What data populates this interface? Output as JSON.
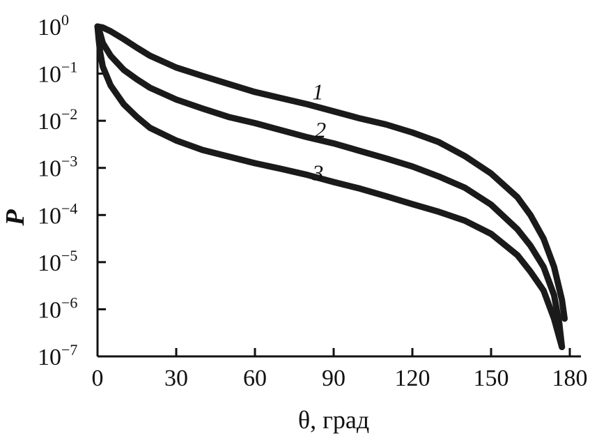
{
  "chart_data": {
    "type": "line",
    "title": "",
    "xlabel": "θ, град",
    "ylabel": "P",
    "xlim": [
      0,
      180
    ],
    "ylim_log10": [
      -7,
      0
    ],
    "y_scale": "log",
    "grid": false,
    "legend": "none",
    "x_ticks": [
      {
        "value": 0,
        "label": "0"
      },
      {
        "value": 30,
        "label": "30"
      },
      {
        "value": 60,
        "label": "60"
      },
      {
        "value": 90,
        "label": "90"
      },
      {
        "value": 120,
        "label": "120"
      },
      {
        "value": 150,
        "label": "150"
      },
      {
        "value": 180,
        "label": "180"
      }
    ],
    "y_ticks": [
      {
        "exp": 0,
        "base": "10",
        "sup": "0"
      },
      {
        "exp": -1,
        "base": "10",
        "sup": "−1"
      },
      {
        "exp": -2,
        "base": "10",
        "sup": "−2"
      },
      {
        "exp": -3,
        "base": "10",
        "sup": "−3"
      },
      {
        "exp": -4,
        "base": "10",
        "sup": "−4"
      },
      {
        "exp": -5,
        "base": "10",
        "sup": "−5"
      },
      {
        "exp": -6,
        "base": "10",
        "sup": "−6"
      },
      {
        "exp": -7,
        "base": "10",
        "sup": "−7"
      }
    ],
    "series": [
      {
        "name": "1",
        "label_at": [
          84,
          -1.55
        ],
        "points": [
          [
            0,
            0
          ],
          [
            2,
            -0.02
          ],
          [
            5,
            -0.1
          ],
          [
            10,
            -0.27
          ],
          [
            15,
            -0.45
          ],
          [
            20,
            -0.62
          ],
          [
            30,
            -0.87
          ],
          [
            40,
            -1.05
          ],
          [
            50,
            -1.22
          ],
          [
            60,
            -1.39
          ],
          [
            70,
            -1.52
          ],
          [
            80,
            -1.65
          ],
          [
            90,
            -1.8
          ],
          [
            100,
            -1.95
          ],
          [
            110,
            -2.08
          ],
          [
            120,
            -2.25
          ],
          [
            130,
            -2.45
          ],
          [
            140,
            -2.75
          ],
          [
            150,
            -3.12
          ],
          [
            160,
            -3.62
          ],
          [
            165,
            -4.0
          ],
          [
            170,
            -4.5
          ],
          [
            174,
            -5.1
          ],
          [
            177,
            -5.8
          ],
          [
            178,
            -6.2
          ]
        ]
      },
      {
        "name": "2",
        "label_at": [
          85,
          -2.35
        ],
        "points": [
          [
            0,
            0
          ],
          [
            1,
            -0.15
          ],
          [
            2,
            -0.35
          ],
          [
            5,
            -0.62
          ],
          [
            10,
            -0.92
          ],
          [
            15,
            -1.12
          ],
          [
            20,
            -1.3
          ],
          [
            30,
            -1.55
          ],
          [
            40,
            -1.74
          ],
          [
            50,
            -1.92
          ],
          [
            60,
            -2.05
          ],
          [
            70,
            -2.2
          ],
          [
            80,
            -2.35
          ],
          [
            90,
            -2.48
          ],
          [
            100,
            -2.64
          ],
          [
            110,
            -2.8
          ],
          [
            120,
            -2.97
          ],
          [
            130,
            -3.18
          ],
          [
            140,
            -3.42
          ],
          [
            150,
            -3.78
          ],
          [
            160,
            -4.3
          ],
          [
            165,
            -4.65
          ],
          [
            170,
            -5.1
          ],
          [
            174,
            -5.7
          ],
          [
            176,
            -6.3
          ],
          [
            177,
            -6.8
          ]
        ]
      },
      {
        "name": "3",
        "label_at": [
          84,
          -3.26
        ],
        "points": [
          [
            0,
            0
          ],
          [
            0.5,
            -0.3
          ],
          [
            1,
            -0.55
          ],
          [
            2,
            -0.85
          ],
          [
            5,
            -1.25
          ],
          [
            10,
            -1.65
          ],
          [
            15,
            -1.92
          ],
          [
            20,
            -2.15
          ],
          [
            30,
            -2.42
          ],
          [
            40,
            -2.62
          ],
          [
            50,
            -2.76
          ],
          [
            60,
            -2.9
          ],
          [
            70,
            -3.02
          ],
          [
            80,
            -3.15
          ],
          [
            90,
            -3.3
          ],
          [
            100,
            -3.44
          ],
          [
            110,
            -3.6
          ],
          [
            120,
            -3.77
          ],
          [
            130,
            -3.93
          ],
          [
            140,
            -4.12
          ],
          [
            150,
            -4.4
          ],
          [
            160,
            -4.85
          ],
          [
            165,
            -5.2
          ],
          [
            170,
            -5.6
          ],
          [
            174,
            -6.2
          ],
          [
            176,
            -6.6
          ],
          [
            177,
            -6.8
          ]
        ]
      }
    ]
  }
}
